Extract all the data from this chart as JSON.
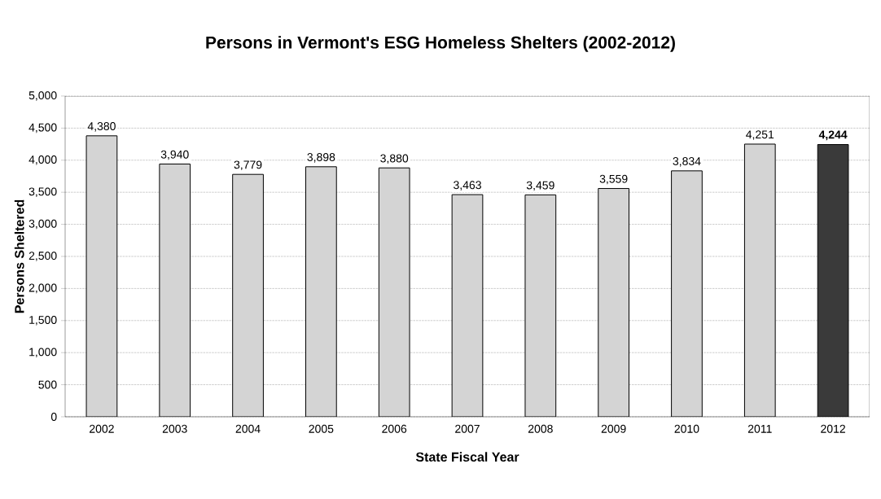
{
  "chart_data": {
    "type": "bar",
    "title": "Persons in Vermont's ESG Homeless Shelters (2002-2012)",
    "xlabel": "State Fiscal Year",
    "ylabel": "Persons Sheltered",
    "categories": [
      "2002",
      "2003",
      "2004",
      "2005",
      "2006",
      "2007",
      "2008",
      "2009",
      "2010",
      "2011",
      "2012"
    ],
    "values": [
      4380,
      3940,
      3779,
      3898,
      3880,
      3463,
      3459,
      3559,
      3834,
      4251,
      4244
    ],
    "colors": [
      "#d4d4d4",
      "#d4d4d4",
      "#d4d4d4",
      "#d4d4d4",
      "#d4d4d4",
      "#d4d4d4",
      "#d4d4d4",
      "#d4d4d4",
      "#d4d4d4",
      "#d4d4d4",
      "#3a3a3a"
    ],
    "value_labels": [
      "4,380",
      "3,940",
      "3,779",
      "3,898",
      "3,880",
      "3,463",
      "3,459",
      "3,559",
      "3,834",
      "4,251",
      "**4,244**"
    ],
    "ylim": [
      0,
      5000
    ],
    "yticks": [
      {
        "value": 0,
        "label": "0"
      },
      {
        "value": 500,
        "label": "500"
      },
      {
        "value": 1000,
        "label": "1,000"
      },
      {
        "value": 1500,
        "label": "1,500"
      },
      {
        "value": 2000,
        "label": "2,000"
      },
      {
        "value": 2500,
        "label": "2,500"
      },
      {
        "value": 3000,
        "label": "3,000"
      },
      {
        "value": 3500,
        "label": "3,500"
      },
      {
        "value": 4000,
        "label": "4,000"
      },
      {
        "value": 4500,
        "label": "4,500"
      },
      {
        "value": 5000,
        "label": "5,000"
      }
    ],
    "grid": "y"
  }
}
